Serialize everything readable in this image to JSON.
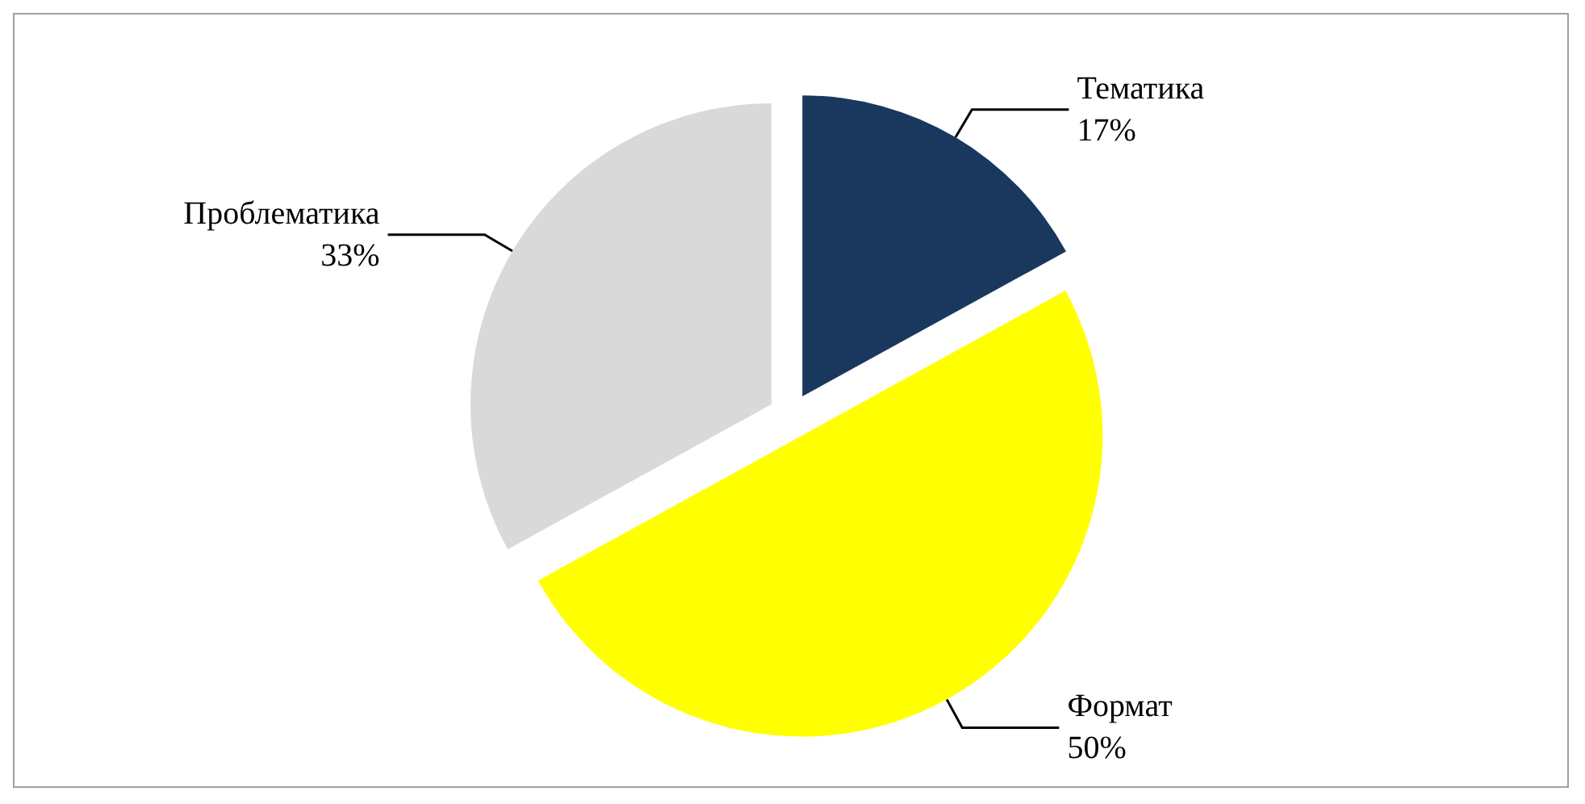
{
  "chart_data": {
    "type": "pie",
    "categories": [
      "Тематика",
      "Формат",
      "Проблематика"
    ],
    "values": [
      17,
      50,
      33
    ],
    "colors": [
      "#1a375e",
      "#ffff00",
      "#d9d9d9"
    ],
    "value_labels": [
      "17%",
      "50%",
      "33%"
    ],
    "legend": false
  }
}
